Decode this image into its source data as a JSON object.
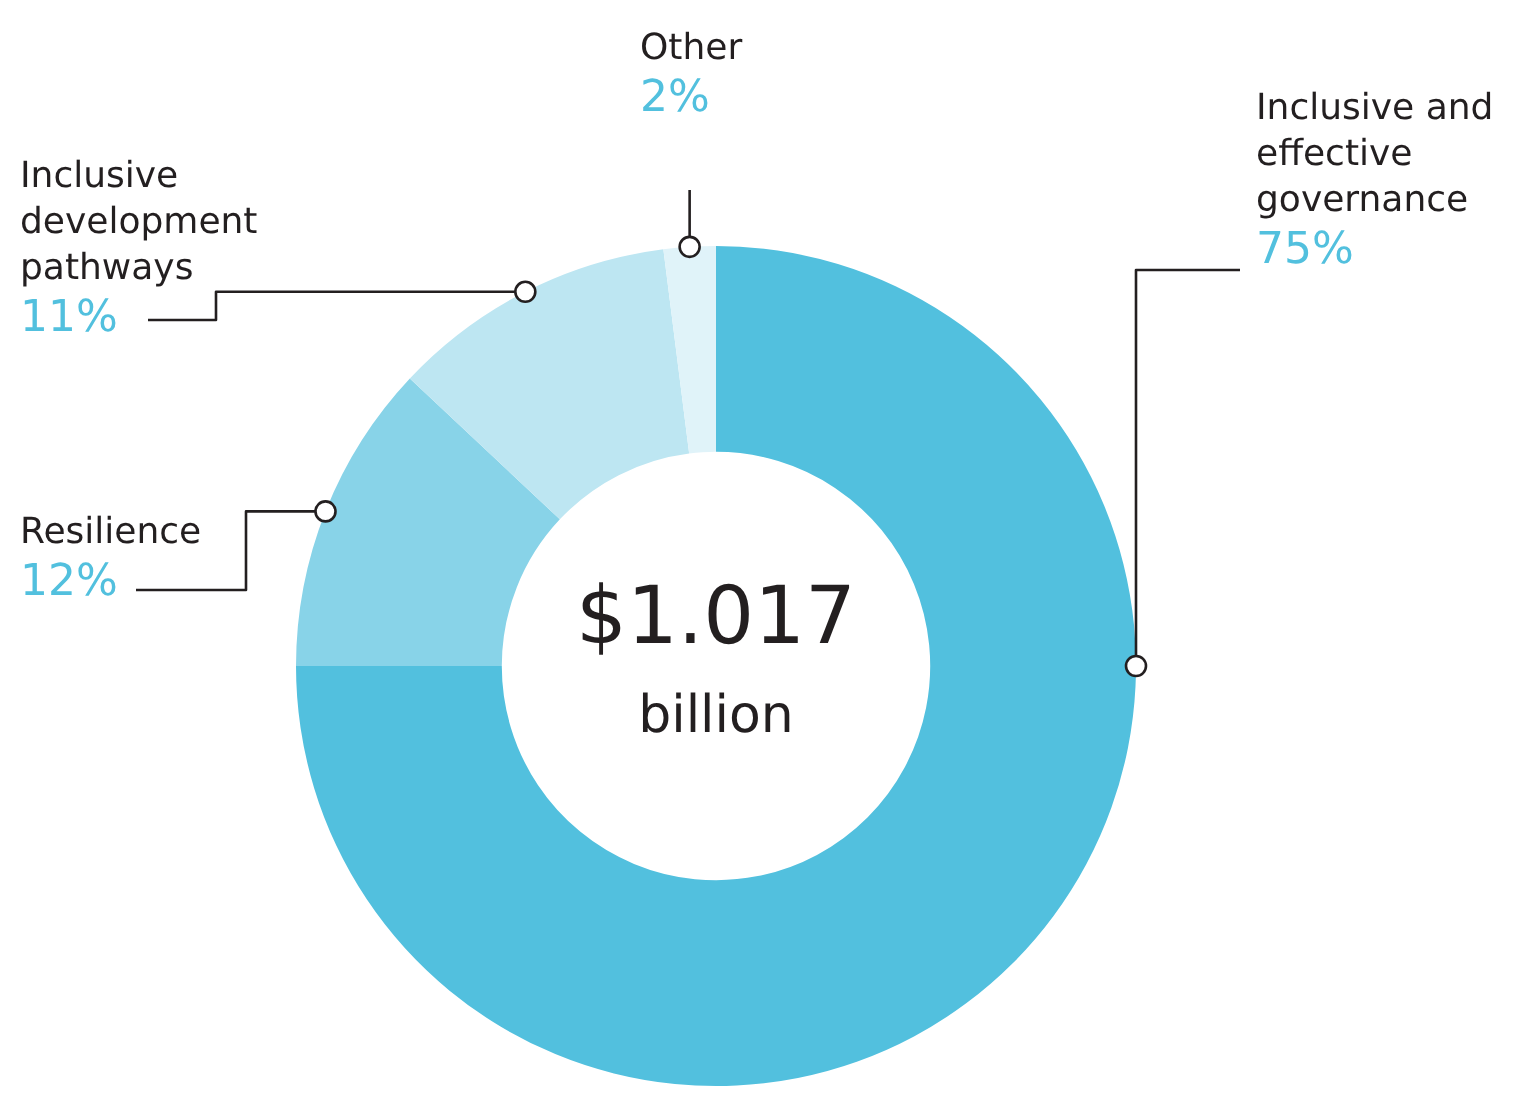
{
  "chart_data": {
    "type": "donut",
    "categories": [
      "Inclusive and effective governance",
      "Resilience",
      "Inclusive development pathways",
      "Other"
    ],
    "values": [
      75,
      12,
      11,
      2
    ],
    "value_labels": [
      "75%",
      "12%",
      "11%",
      "2%"
    ],
    "colors": [
      "#52c0de",
      "#88d3e8",
      "#bde6f2",
      "#e0f3f9"
    ],
    "annotations": [
      "$1.017",
      "billion"
    ],
    "legend": false
  }
}
